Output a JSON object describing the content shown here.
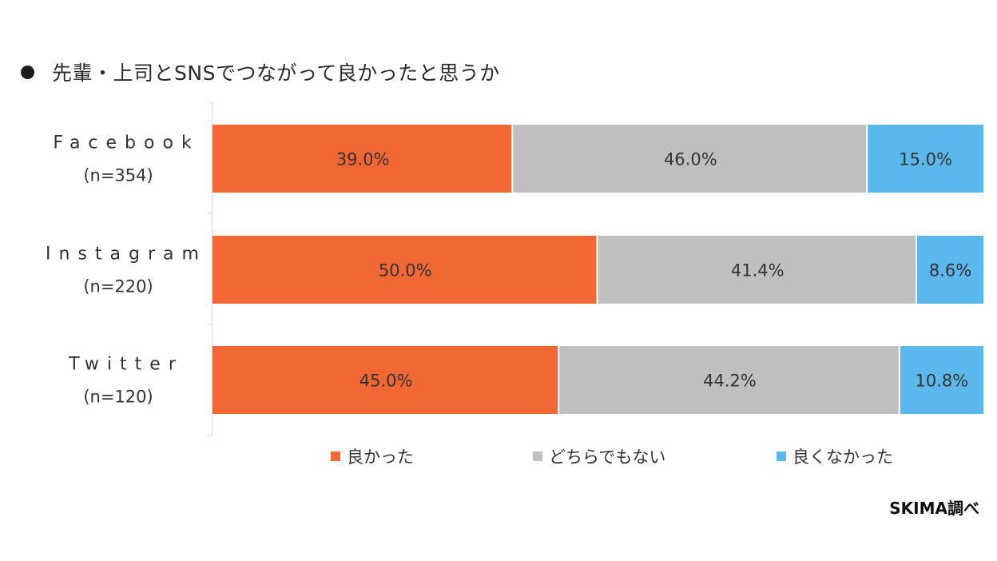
{
  "title": "先輩・上司とSNSでつながって良かったと思うか",
  "source": "SKIMA調べ",
  "colors": {
    "good": "#f26835",
    "neutral": "#bfbfbf",
    "bad": "#5bb8ec"
  },
  "chart_data": {
    "type": "bar",
    "orientation": "horizontal",
    "stacked": true,
    "normalized": true,
    "categories": [
      "Facebook",
      "Instagram",
      "Twitter"
    ],
    "category_sublabels": [
      "(n=354)",
      "(n=220)",
      "(n=120)"
    ],
    "series": [
      {
        "name": "良かった",
        "values": [
          39.0,
          50.0,
          45.0
        ],
        "labels": [
          "39.0%",
          "50.0%",
          "45.0%"
        ]
      },
      {
        "name": "どちらでもない",
        "values": [
          46.0,
          41.4,
          44.2
        ],
        "labels": [
          "46.0%",
          "41.4%",
          "44.2%"
        ]
      },
      {
        "name": "良くなかった",
        "values": [
          15.0,
          8.6,
          10.8
        ],
        "labels": [
          "15.0%",
          "8.6%",
          "10.8%"
        ]
      }
    ],
    "xlim": [
      0,
      100
    ],
    "legend_position": "bottom",
    "grid": false
  }
}
